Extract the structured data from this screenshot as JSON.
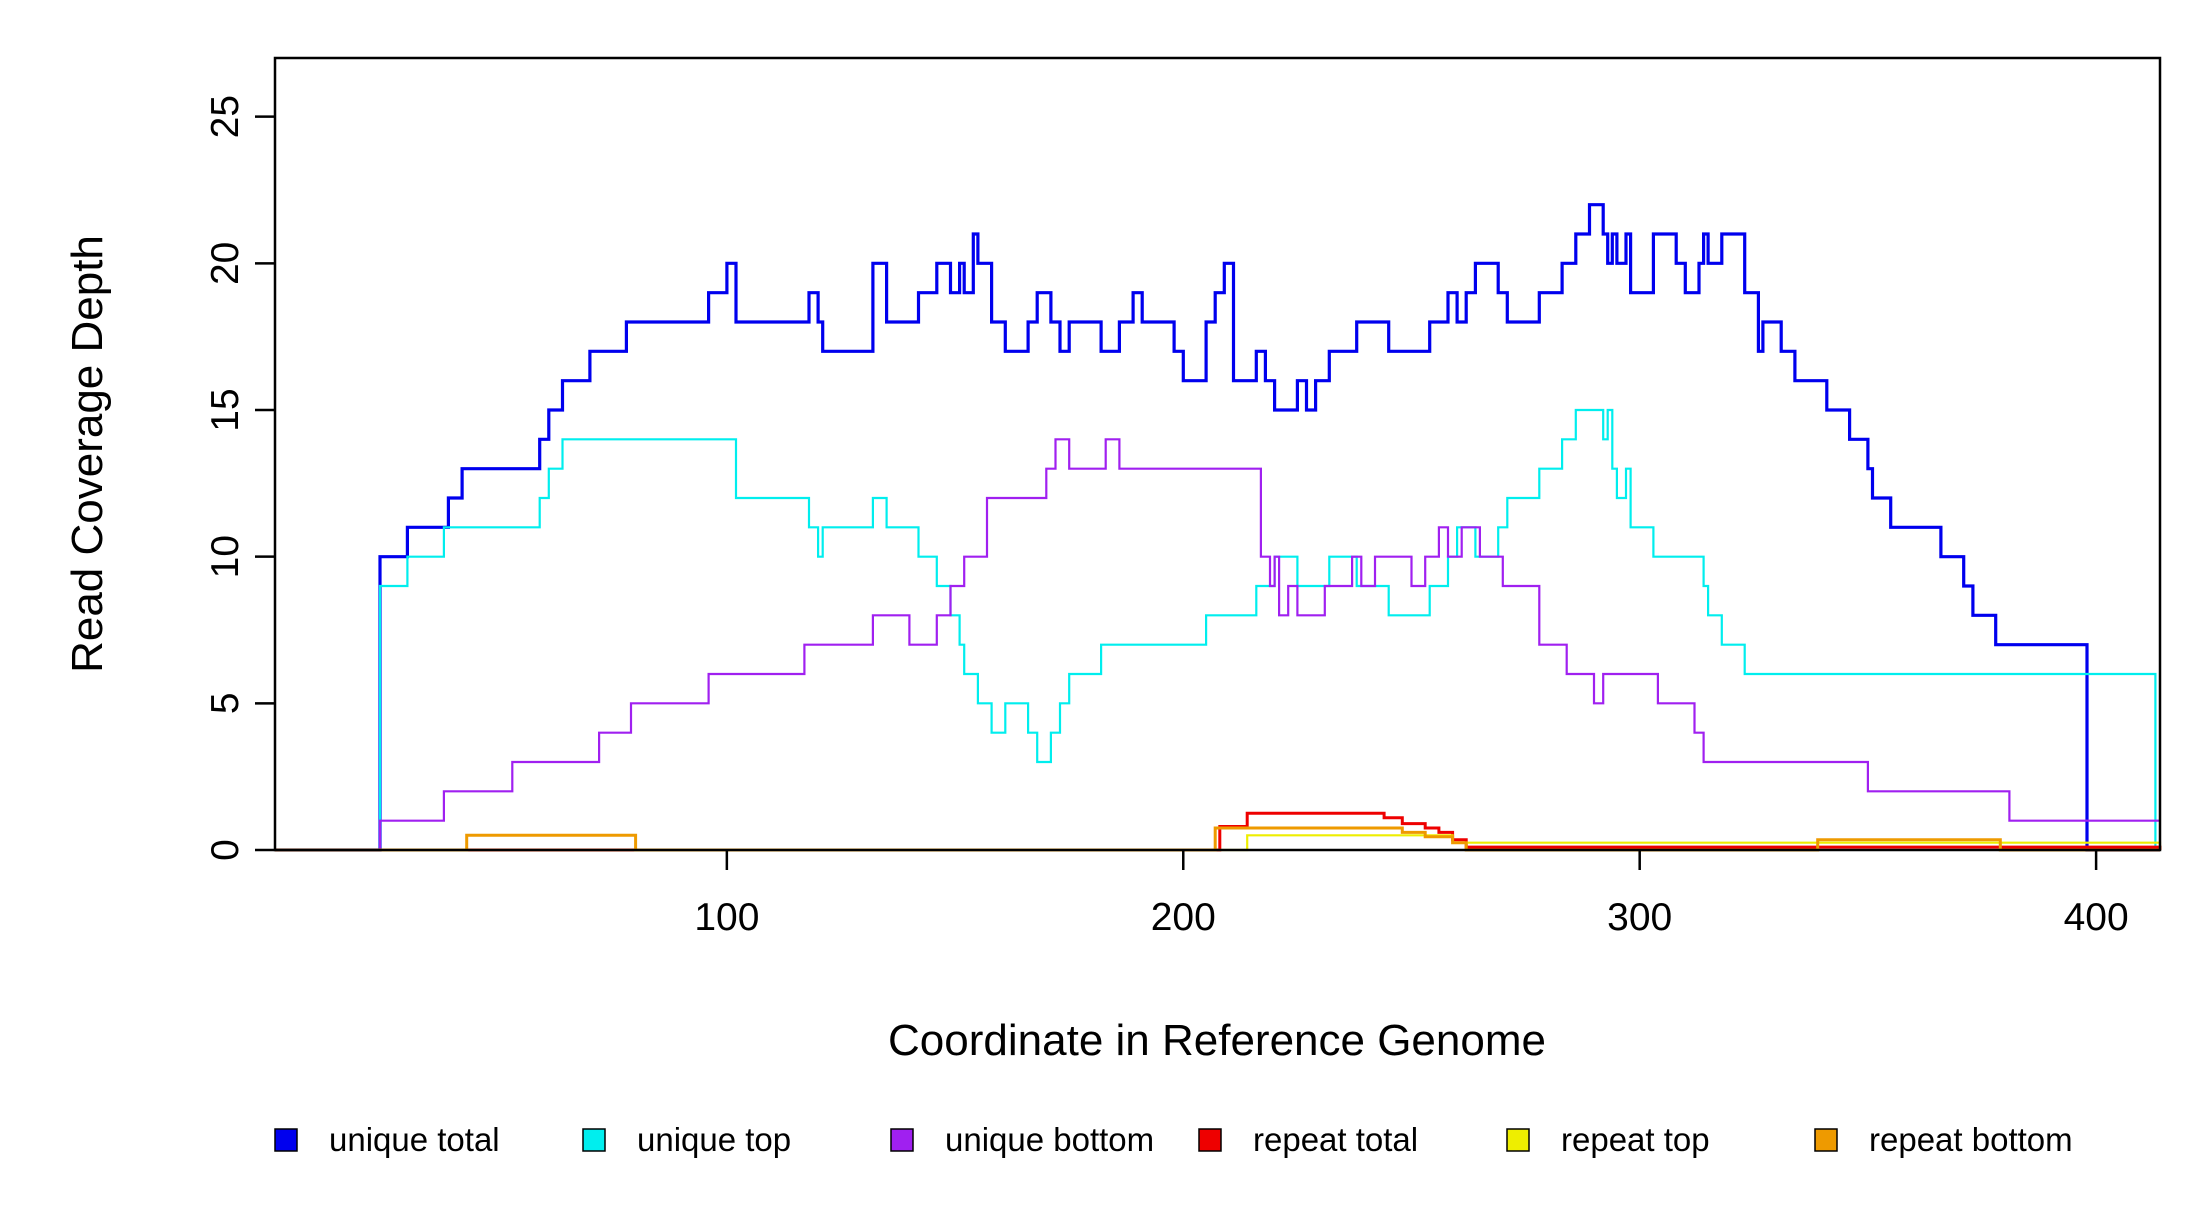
{
  "chart_data": {
    "type": "line",
    "style": "step",
    "xlabel": "Coordinate in Reference Genome",
    "ylabel": "Read Coverage Depth",
    "xlim": [
      1,
      414
    ],
    "ylim": [
      0,
      27
    ],
    "x_ticks": [
      100,
      200,
      300,
      400
    ],
    "y_ticks": [
      0,
      5,
      10,
      15,
      20,
      25
    ],
    "grid": false,
    "legend_position": "bottom",
    "series": [
      {
        "name": "unique total",
        "color": "#0000EE",
        "x": [
          1,
          24,
          30,
          39,
          42,
          59,
          61,
          64,
          70,
          78,
          96,
          100,
          102,
          118,
          120,
          121,
          132,
          135,
          142,
          146,
          149,
          151,
          152,
          154,
          155,
          158,
          161,
          166,
          168,
          171,
          173,
          175,
          182,
          186,
          189,
          191,
          198,
          200,
          205,
          207,
          209,
          211,
          216,
          218,
          220,
          225,
          227,
          229,
          232,
          238,
          245,
          254,
          258,
          260,
          262,
          264,
          269,
          271,
          278,
          283,
          286,
          289,
          292,
          293,
          294,
          295,
          297,
          298,
          303,
          308,
          310,
          313,
          314,
          315,
          318,
          323,
          326,
          327,
          331,
          334,
          341,
          346,
          350,
          351,
          355,
          366,
          371,
          373,
          378,
          383,
          384,
          387,
          398
        ],
        "y": [
          0,
          10,
          11,
          12,
          13,
          14,
          15,
          16,
          17,
          18,
          19,
          20,
          18,
          19,
          18,
          17,
          20,
          18,
          19,
          20,
          19,
          20,
          19,
          21,
          20,
          18,
          17,
          18,
          19,
          18,
          17,
          18,
          17,
          18,
          19,
          18,
          17,
          16,
          18,
          19,
          20,
          16,
          17,
          16,
          15,
          16,
          15,
          16,
          17,
          18,
          17,
          18,
          19,
          18,
          19,
          20,
          19,
          18,
          19,
          20,
          21,
          22,
          21,
          20,
          21,
          20,
          21,
          19,
          21,
          20,
          19,
          20,
          21,
          20,
          21,
          19,
          17,
          18,
          17,
          16,
          15,
          14,
          13,
          12,
          11,
          10,
          9,
          8,
          7,
          7,
          7,
          7,
          0
        ]
      },
      {
        "name": "unique top",
        "color": "#00EEEE",
        "x": [
          1,
          24,
          30,
          38,
          59,
          61,
          64,
          102,
          118,
          120,
          121,
          132,
          135,
          142,
          146,
          149,
          151,
          152,
          155,
          158,
          161,
          166,
          168,
          171,
          173,
          175,
          182,
          186,
          189,
          191,
          198,
          200,
          205,
          207,
          209,
          211,
          216,
          218,
          220,
          225,
          227,
          229,
          232,
          238,
          245,
          254,
          258,
          260,
          262,
          264,
          269,
          271,
          278,
          283,
          286,
          289,
          292,
          293,
          294,
          295,
          297,
          298,
          303,
          308,
          310,
          313,
          314,
          315,
          318,
          323,
          326,
          327,
          331,
          334,
          341,
          346,
          350,
          351,
          355,
          366,
          371,
          373,
          378,
          383,
          384,
          387,
          398,
          413
        ],
        "y": [
          0,
          9,
          10,
          11,
          12,
          13,
          14,
          12,
          11,
          10,
          11,
          12,
          11,
          10,
          9,
          8,
          7,
          6,
          5,
          4,
          5,
          4,
          3,
          4,
          5,
          6,
          7,
          7,
          7,
          7,
          7,
          7,
          8,
          8,
          8,
          8,
          9,
          9,
          10,
          9,
          9,
          9,
          10,
          9,
          8,
          9,
          10,
          11,
          11,
          10,
          11,
          12,
          13,
          14,
          15,
          15,
          14,
          15,
          13,
          12,
          13,
          11,
          10,
          10,
          10,
          10,
          9,
          8,
          7,
          6,
          6,
          6,
          6,
          6,
          6,
          6,
          6,
          6,
          6,
          6,
          6,
          6,
          6,
          6,
          6,
          6,
          6,
          0
        ]
      },
      {
        "name": "unique bottom",
        "color": "#A020F0",
        "x": [
          1,
          24,
          38,
          53,
          72,
          79,
          96,
          117,
          132,
          140,
          146,
          149,
          152,
          157,
          170,
          172,
          175,
          183,
          186,
          189,
          217,
          219,
          220,
          221,
          223,
          225,
          231,
          237,
          239,
          242,
          250,
          253,
          256,
          258,
          261,
          265,
          270,
          278,
          284,
          290,
          292,
          294,
          304,
          312,
          314,
          326,
          329,
          331,
          344,
          350,
          366,
          381,
          392
        ],
        "y": [
          0,
          1,
          2,
          3,
          4,
          5,
          6,
          7,
          8,
          7,
          8,
          9,
          10,
          12,
          13,
          14,
          13,
          14,
          13,
          13,
          10,
          9,
          10,
          8,
          9,
          8,
          9,
          10,
          9,
          10,
          9,
          10,
          11,
          10,
          11,
          10,
          9,
          7,
          6,
          5,
          6,
          6,
          5,
          4,
          3,
          3,
          3,
          3,
          3,
          2,
          2,
          1,
          1
        ]
      },
      {
        "name": "repeat total",
        "color": "#EE0000",
        "x": [
          1,
          208,
          214,
          242,
          244,
          248,
          253,
          256,
          259,
          262,
          414
        ],
        "y": [
          0,
          0.8,
          1.25,
          1.25,
          1.1,
          0.9,
          0.75,
          0.6,
          0.35,
          0.1,
          0
        ]
      },
      {
        "name": "repeat top",
        "color": "#EEEE00",
        "x": [
          1,
          214,
          242,
          259,
          414
        ],
        "y": [
          0,
          0.5,
          0.5,
          0.25,
          0
        ]
      },
      {
        "name": "repeat bottom",
        "color": "#EE9A00",
        "x": [
          1,
          43,
          80,
          207,
          214,
          248,
          253,
          259,
          262,
          339,
          379,
          414
        ],
        "y": [
          0,
          0.5,
          0,
          0.75,
          0.75,
          0.6,
          0.45,
          0.25,
          0,
          0.35,
          0,
          0
        ]
      }
    ]
  }
}
